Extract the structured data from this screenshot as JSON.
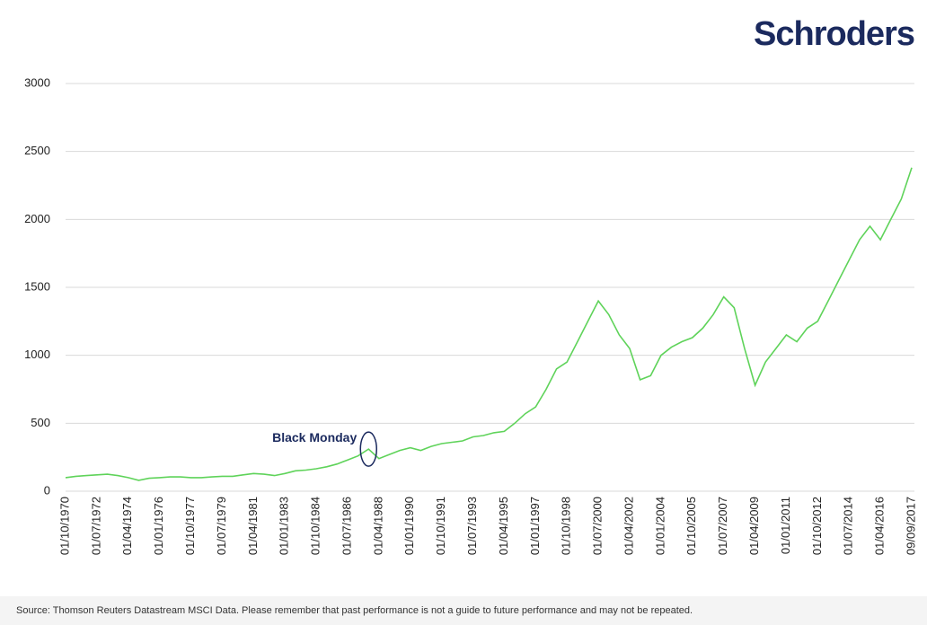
{
  "chart_data": {
    "type": "line",
    "logo": "Schroders",
    "annotation": "Black Monday",
    "source": "Source: Thomson Reuters Datastream MSCI Data. Please remember that past performance is not a guide to future performance and may not be repeated.",
    "categories": [
      "01/10/1970",
      null,
      null,
      "01/07/1972",
      null,
      null,
      "01/04/1974",
      null,
      null,
      "01/01/1976",
      null,
      null,
      "01/10/1977",
      null,
      null,
      "01/07/1979",
      null,
      null,
      "01/04/1981",
      null,
      null,
      "01/01/1983",
      null,
      null,
      "01/10/1984",
      null,
      null,
      "01/07/1986",
      null,
      null,
      "01/04/1988",
      null,
      null,
      "01/01/1990",
      null,
      null,
      "01/10/1991",
      null,
      null,
      "01/07/1993",
      null,
      null,
      "01/04/1995",
      null,
      null,
      "01/01/1997",
      null,
      null,
      "01/10/1998",
      null,
      null,
      "01/07/2000",
      null,
      null,
      "01/04/2002",
      null,
      null,
      "01/01/2004",
      null,
      null,
      "01/10/2005",
      null,
      null,
      "01/07/2007",
      null,
      null,
      "01/04/2009",
      null,
      null,
      "01/01/2011",
      null,
      null,
      "01/10/2012",
      null,
      null,
      "01/07/2014",
      null,
      null,
      "01/04/2016",
      null,
      null,
      "09/09/2017"
    ],
    "values": [
      100,
      110,
      115,
      120,
      125,
      115,
      100,
      80,
      95,
      100,
      105,
      105,
      100,
      100,
      105,
      110,
      110,
      120,
      130,
      125,
      115,
      130,
      150,
      155,
      165,
      180,
      200,
      230,
      260,
      310,
      240,
      270,
      300,
      320,
      300,
      330,
      350,
      360,
      370,
      400,
      410,
      430,
      440,
      500,
      570,
      620,
      750,
      900,
      950,
      1100,
      1250,
      1400,
      1300,
      1150,
      1050,
      820,
      850,
      1000,
      1060,
      1100,
      1130,
      1200,
      1300,
      1430,
      1350,
      1050,
      780,
      950,
      1050,
      1150,
      1100,
      1200,
      1250,
      1400,
      1550,
      1700,
      1850,
      1950,
      1850,
      2000,
      2150,
      2380
    ],
    "annotation_index": 29,
    "color": "#5fd35a",
    "ylim": [
      0,
      3000
    ],
    "yticks": [
      0,
      500,
      1000,
      1500,
      2000,
      2500,
      3000
    ],
    "grid": true
  }
}
